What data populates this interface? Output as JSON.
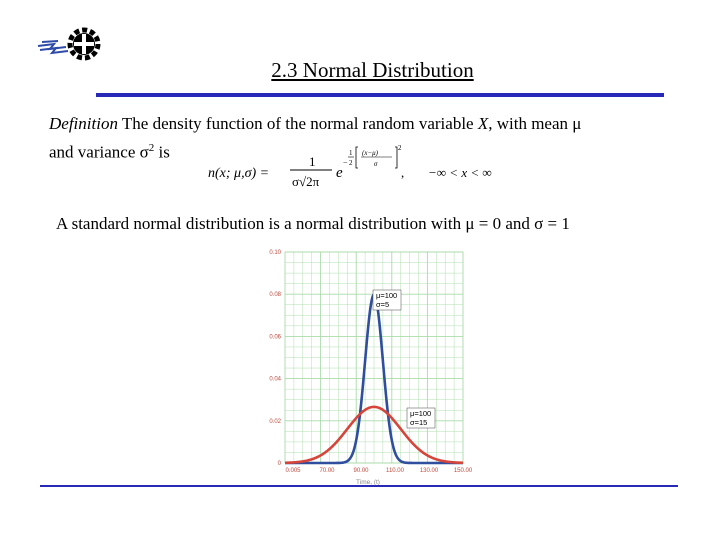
{
  "title": "2.3 Normal Distribution",
  "definition": {
    "term": "Definition",
    "text_a": " The density function of the normal random variable ",
    "var": "X",
    "text_b": ", with mean ",
    "mu": "μ",
    "line2_a": "and variance ",
    "sigma": "σ",
    "sup": "2",
    "line2_b": " is"
  },
  "formula": {
    "lhs": "n(x; μ,σ) =",
    "num": "1",
    "den": "σ√2π",
    "e": "e",
    "exp_frac_num": "1",
    "exp_frac_den": "2",
    "minus": "−",
    "inner_num": "(x−μ)",
    "inner_den": "σ",
    "exp2": "2",
    "comma": ",",
    "domain": "−∞ < x < ∞"
  },
  "standard_normal": "A standard normal distribution is a normal distribution with μ = 0 and σ = 1",
  "chart_data": {
    "type": "line",
    "xlabel": "Time, (t)",
    "ylabel": "",
    "x_tick_labels": [
      "0.005",
      "70.00",
      "90.00",
      "110.00",
      "130.00",
      "150.00"
    ],
    "y_tick_labels": [
      "0",
      "0.02",
      "0.04",
      "0.06",
      "0.08",
      "0.10"
    ],
    "xlim": [
      50,
      150
    ],
    "ylim": [
      0,
      0.1
    ],
    "grid": true,
    "series": [
      {
        "annotation": [
          "μ=100",
          "σ=5"
        ],
        "mean": 100,
        "sd": 5,
        "color": "#2f4e9e"
      },
      {
        "annotation": [
          "μ=100",
          "σ=15"
        ],
        "mean": 100,
        "sd": 15,
        "color": "#d6453b"
      }
    ]
  },
  "colors": {
    "accent_rule": "#2929b8",
    "grid": "#a9dba9",
    "curve_narrow": "#2f4e9e",
    "curve_wide": "#d6453b",
    "tick_text": "#c24a3e"
  }
}
